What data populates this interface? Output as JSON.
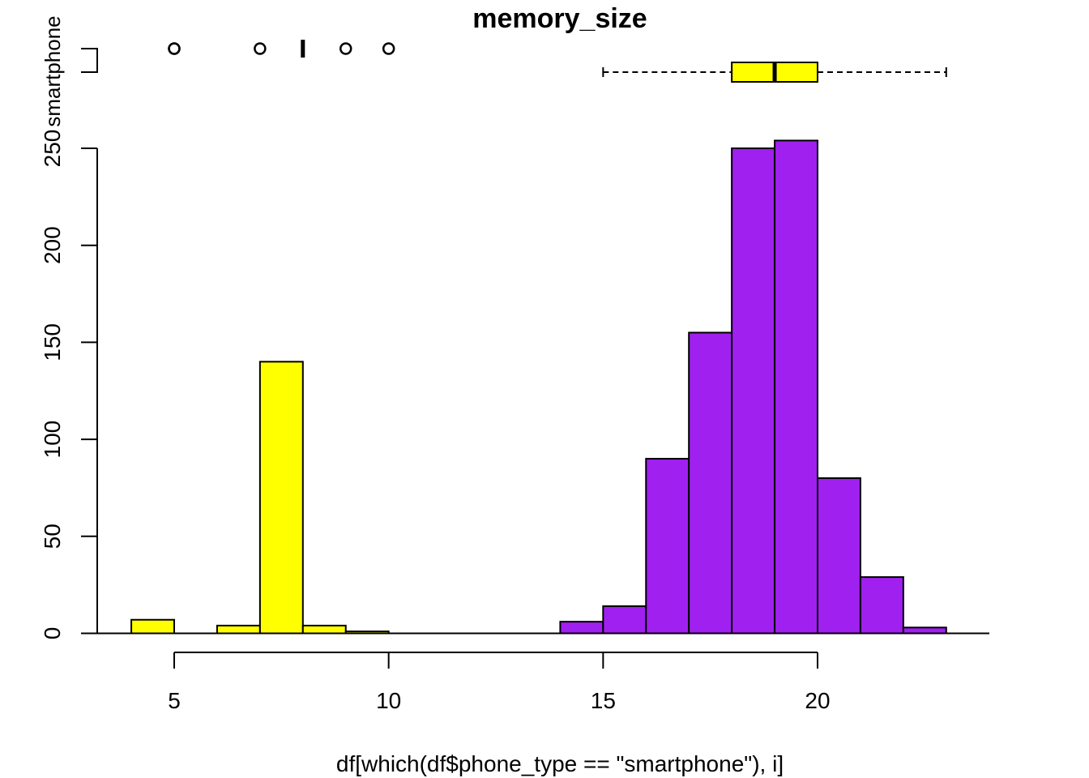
{
  "chart_data": {
    "type": "bar",
    "title": "memory_size",
    "xlabel": "df[which(df$phone_type == \"smartphone\"), i]",
    "ylabel": "",
    "xlim": [
      3.2,
      24.2
    ],
    "ylim": [
      0,
      255
    ],
    "x_ticks": [
      "5",
      "10",
      "15",
      "20"
    ],
    "y_ticks": [
      "0",
      "50",
      "100",
      "150",
      "200",
      "250"
    ],
    "grid": false,
    "boxplot_label": "smartphone",
    "colors": {
      "group_a": "#ffff00",
      "group_b": "#a020f0",
      "outline": "#000000"
    },
    "series": [
      {
        "color": "#ffff00",
        "bins": [
          {
            "x0": 4,
            "x1": 5,
            "count": 7
          },
          {
            "x0": 5,
            "x1": 6,
            "count": 0
          },
          {
            "x0": 6,
            "x1": 7,
            "count": 4
          },
          {
            "x0": 7,
            "x1": 8,
            "count": 140
          },
          {
            "x0": 8,
            "x1": 9,
            "count": 4
          },
          {
            "x0": 9,
            "x1": 10,
            "count": 1
          }
        ]
      },
      {
        "color": "#a020f0",
        "bins": [
          {
            "x0": 10,
            "x1": 11,
            "count": 0
          },
          {
            "x0": 11,
            "x1": 12,
            "count": 0
          },
          {
            "x0": 12,
            "x1": 13,
            "count": 0
          },
          {
            "x0": 13,
            "x1": 14,
            "count": 0
          },
          {
            "x0": 14,
            "x1": 15,
            "count": 6
          },
          {
            "x0": 15,
            "x1": 16,
            "count": 14
          },
          {
            "x0": 16,
            "x1": 17,
            "count": 90
          },
          {
            "x0": 17,
            "x1": 18,
            "count": 155
          },
          {
            "x0": 18,
            "x1": 19,
            "count": 250
          },
          {
            "x0": 19,
            "x1": 20,
            "count": 254
          },
          {
            "x0": 20,
            "x1": 21,
            "count": 80
          },
          {
            "x0": 21,
            "x1": 22,
            "count": 29
          },
          {
            "x0": 22,
            "x1": 23,
            "count": 3
          }
        ]
      }
    ],
    "boxplots": [
      {
        "name": "smartphone",
        "color": "#ffff00",
        "q1": 18,
        "median": 19,
        "q3": 20,
        "whisker_low": 15,
        "whisker_high": 23
      },
      {
        "name": "smartphone",
        "color": "#ffff00",
        "median": 8,
        "outliers": [
          5,
          5,
          7,
          9,
          10
        ]
      }
    ]
  }
}
